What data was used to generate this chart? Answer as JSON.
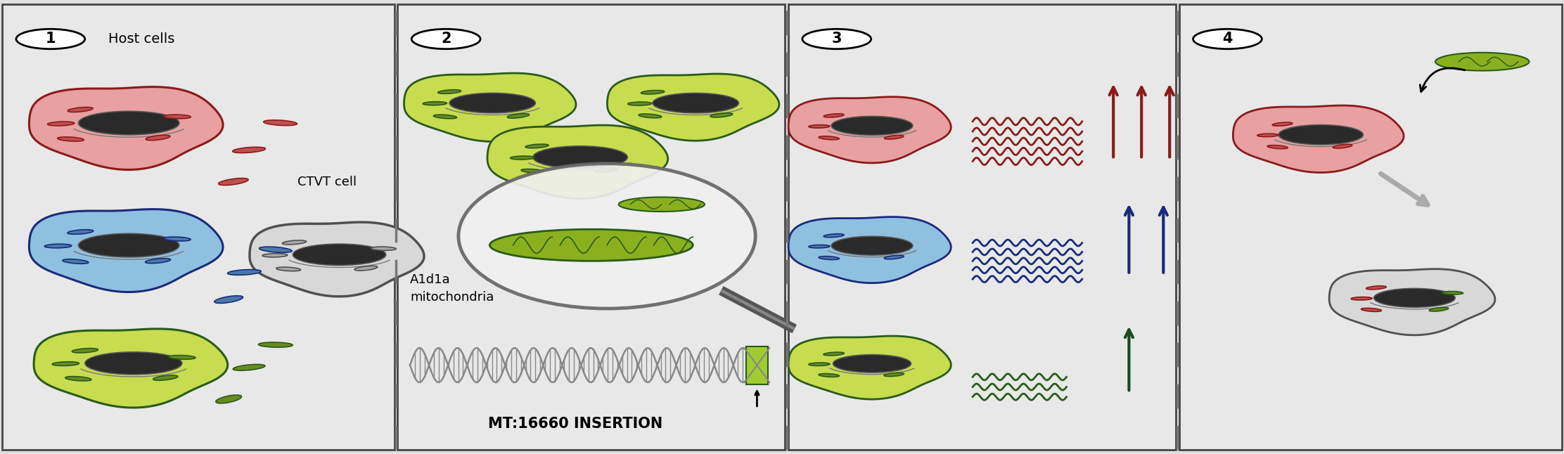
{
  "bg_color": "#e0e0e0",
  "panel_bg": "#e8e8e8",
  "border_color": "#444444",
  "dashed_color": "#777777",
  "panels": [
    0.0,
    0.253,
    0.503,
    0.753,
    1.0
  ],
  "colors": {
    "red_fill": "#e8a0a0",
    "red_border": "#8b1a1a",
    "red_mito": "#c05050",
    "blue_fill": "#90c0e0",
    "blue_border": "#1a2a7a",
    "blue_mito": "#4a7aaa",
    "green_fill": "#c8dc50",
    "green_border": "#2a5a18",
    "green_mito": "#6a8a20",
    "gray_fill": "#d8d8d8",
    "gray_border": "#505050",
    "gray_mito": "#a8a8a8",
    "nucleus": "#2a2a2a",
    "wave_red": "#8b1a1a",
    "wave_blue": "#1a2a7a",
    "wave_green": "#2a5a18",
    "arrow_red": "#8b1a1a",
    "arrow_blue": "#1a2a7a",
    "arrow_green": "#1a4a20",
    "dna_color": "#888888",
    "insert_color": "#a0cc30",
    "insert_border": "#2a5a18",
    "mag_fill": "#e8e8e8",
    "mag_border": "#666666",
    "handle_color": "#555555",
    "mito_lens_fill": "#8ab020",
    "mito_lens_border": "#2a5a18"
  }
}
